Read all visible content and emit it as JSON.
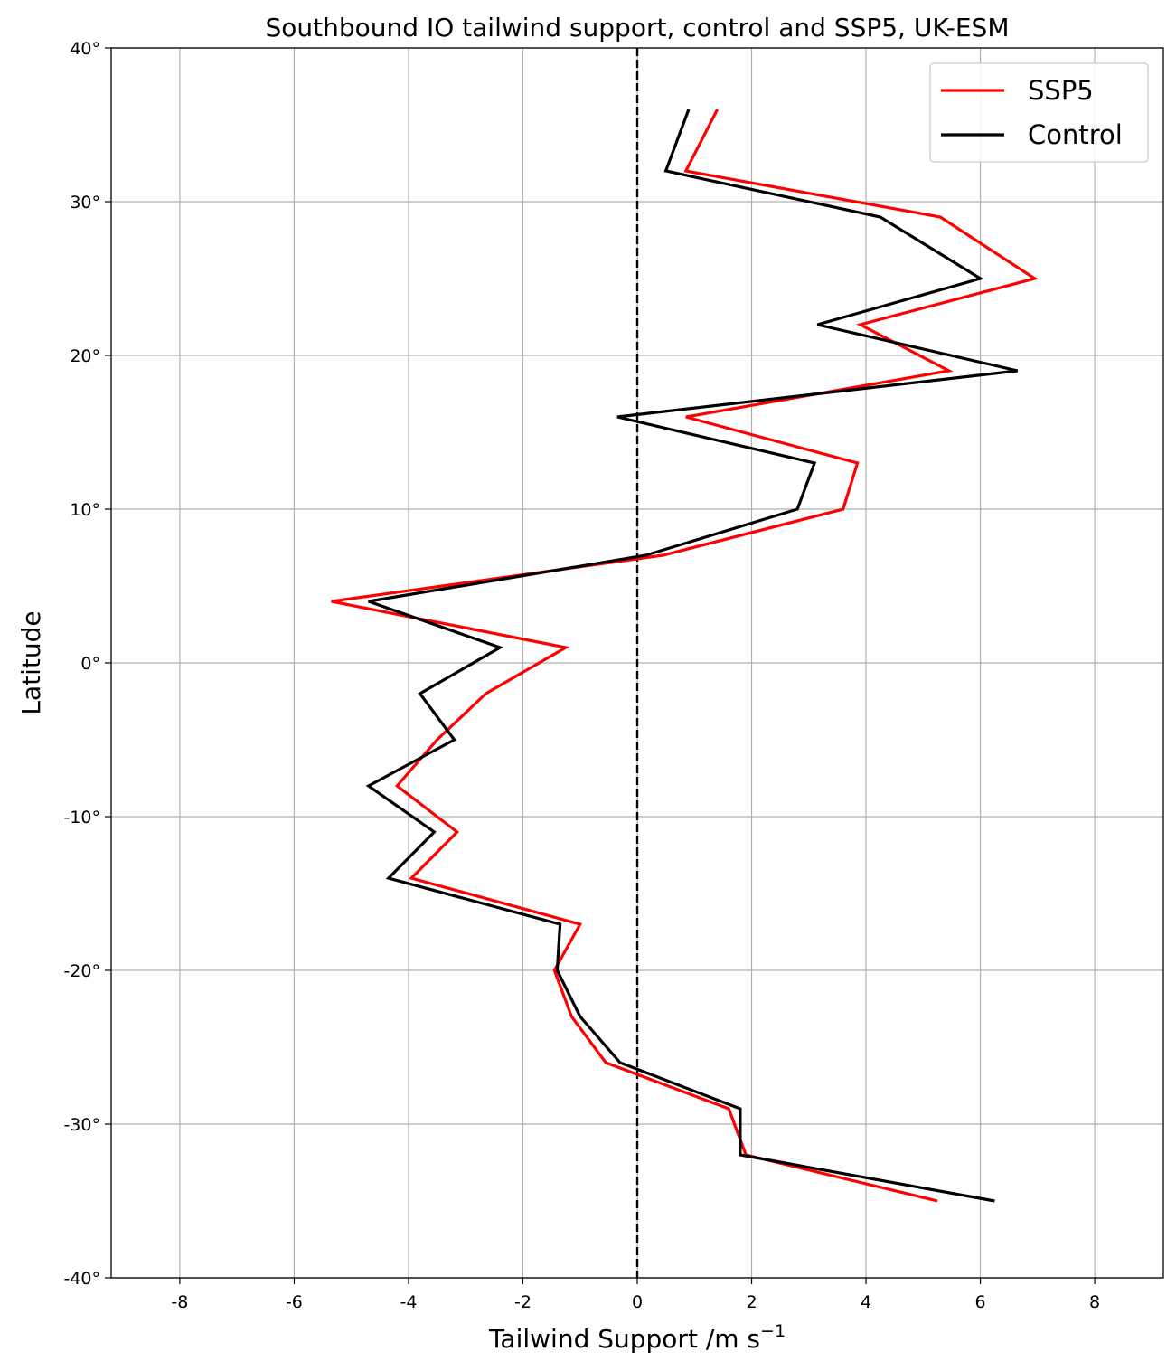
{
  "chart_data": {
    "type": "line",
    "title": "Southbound IO tailwind support, control and SSP5, UK-ESM",
    "xlabel": "Tailwind Support /m s",
    "xlabel_superscript": "−1",
    "ylabel": "Latitude",
    "xlim": [
      -9.2,
      9.2
    ],
    "ylim": [
      -40,
      40
    ],
    "xticks": [
      -8,
      -6,
      -4,
      -2,
      0,
      2,
      4,
      6,
      8
    ],
    "xtick_labels": [
      "-8",
      "-6",
      "-4",
      "-2",
      "0",
      "2",
      "4",
      "6",
      "8"
    ],
    "yticks": [
      -40,
      -30,
      -20,
      -10,
      0,
      10,
      20,
      30,
      40
    ],
    "ytick_labels": [
      "-40°",
      "-30°",
      "-20°",
      "-10°",
      "0°",
      "10°",
      "20°",
      "30°",
      "40°"
    ],
    "grid": true,
    "legend_position": "top-right",
    "reference_line": {
      "x": 0,
      "style": "dashed",
      "color": "#000000"
    },
    "series": [
      {
        "name": "SSP5",
        "color": "#ff0000",
        "points": [
          [
            1.4,
            36
          ],
          [
            0.85,
            32
          ],
          [
            5.3,
            29
          ],
          [
            6.95,
            25
          ],
          [
            3.9,
            22
          ],
          [
            5.45,
            19
          ],
          [
            0.85,
            16
          ],
          [
            3.85,
            13
          ],
          [
            3.6,
            10
          ],
          [
            0.45,
            7
          ],
          [
            -5.35,
            4
          ],
          [
            -1.25,
            1
          ],
          [
            -2.65,
            -2
          ],
          [
            -3.5,
            -5
          ],
          [
            -4.2,
            -8
          ],
          [
            -3.15,
            -11
          ],
          [
            -3.95,
            -14
          ],
          [
            -1.0,
            -17
          ],
          [
            -1.45,
            -20
          ],
          [
            -1.15,
            -23
          ],
          [
            -0.55,
            -26
          ],
          [
            1.6,
            -29
          ],
          [
            1.9,
            -32
          ],
          [
            5.25,
            -35
          ]
        ]
      },
      {
        "name": "Control",
        "color": "#000000",
        "points": [
          [
            0.9,
            36
          ],
          [
            0.5,
            32
          ],
          [
            4.25,
            29
          ],
          [
            6.0,
            25
          ],
          [
            3.15,
            22
          ],
          [
            6.65,
            19
          ],
          [
            -0.35,
            16
          ],
          [
            3.1,
            13
          ],
          [
            2.8,
            10
          ],
          [
            0.15,
            7
          ],
          [
            -4.7,
            4
          ],
          [
            -2.4,
            1
          ],
          [
            -3.8,
            -2
          ],
          [
            -3.2,
            -5
          ],
          [
            -4.7,
            -8
          ],
          [
            -3.55,
            -11
          ],
          [
            -4.35,
            -14
          ],
          [
            -1.35,
            -17
          ],
          [
            -1.4,
            -20
          ],
          [
            -1.0,
            -23
          ],
          [
            -0.3,
            -26
          ],
          [
            1.8,
            -29
          ],
          [
            1.8,
            -32
          ],
          [
            6.25,
            -35
          ]
        ]
      }
    ]
  }
}
